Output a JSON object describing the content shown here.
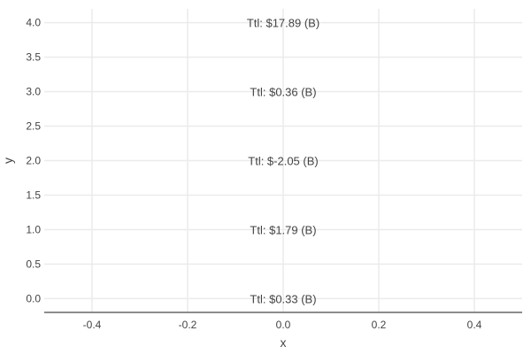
{
  "chart_data": {
    "type": "scatter",
    "mode": "text",
    "title": "",
    "xlabel": "x",
    "ylabel": "y",
    "xlim": [
      -0.5,
      0.5
    ],
    "ylim": [
      -0.2,
      4.2
    ],
    "x_ticks": [
      -0.4,
      -0.2,
      0.0,
      0.2,
      0.4
    ],
    "x_tick_labels": [
      "-0.4",
      "-0.2",
      "0.0",
      "0.2",
      "0.4"
    ],
    "y_ticks": [
      0,
      0.5,
      1,
      1.5,
      2,
      2.5,
      3,
      3.5,
      4
    ],
    "y_tick_labels": [
      "0.0",
      "0.5",
      "1.0",
      "1.5",
      "2.0",
      "2.5",
      "3.0",
      "3.5",
      "4.0"
    ],
    "grid": true,
    "points": [
      {
        "x": 0,
        "y": 0,
        "text": "Ttl: $0.33 (B)"
      },
      {
        "x": 0,
        "y": 1,
        "text": "Ttl: $1.79 (B)"
      },
      {
        "x": 0,
        "y": 2,
        "text": "Ttl: $-2.05 (B)"
      },
      {
        "x": 0,
        "y": 3,
        "text": "Ttl: $0.36 (B)"
      },
      {
        "x": 0,
        "y": 4,
        "text": "Ttl: $17.89 (B)"
      }
    ],
    "colors": {
      "grid": "#ebebeb",
      "axis_line": "#666666",
      "text": "#444444"
    }
  }
}
